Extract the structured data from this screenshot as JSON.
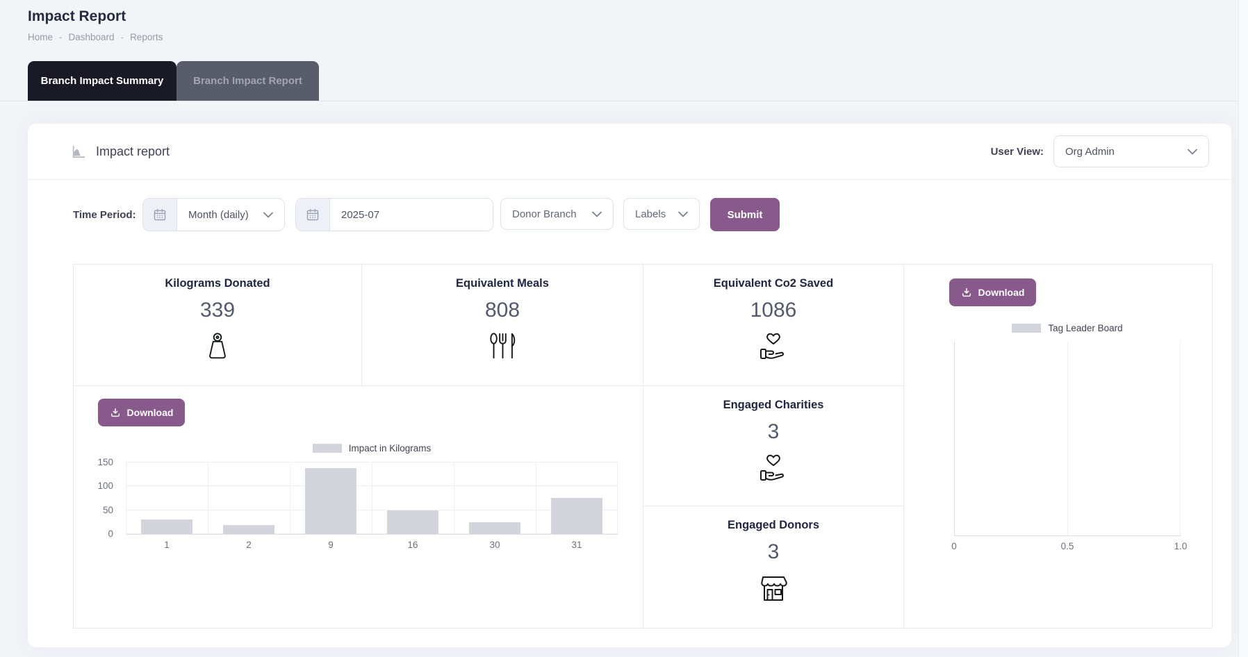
{
  "page": {
    "title": "Impact Report",
    "breadcrumb": {
      "items": [
        "Home",
        "Dashboard",
        "Reports"
      ],
      "separator": "-"
    }
  },
  "tabs": {
    "summary": "Branch Impact Summary",
    "report": "Branch Impact Report"
  },
  "panel": {
    "title": "Impact report",
    "user_view": {
      "label": "User View:",
      "value": "Org Admin"
    },
    "filters": {
      "time_period_label": "Time Period:",
      "granularity": "Month (daily)",
      "month": "2025-07",
      "donor_branch": "Donor Branch",
      "labels": "Labels",
      "submit": "Submit"
    },
    "download_label": "Download",
    "stats": {
      "kilograms": {
        "label": "Kilograms Donated",
        "value": "339",
        "icon": "weight-icon"
      },
      "meals": {
        "label": "Equivalent Meals",
        "value": "808",
        "icon": "cutlery-icon"
      },
      "co2": {
        "label": "Equivalent Co2 Saved",
        "value": "1086",
        "icon": "hand-heart-icon"
      },
      "charities": {
        "label": "Engaged Charities",
        "value": "3",
        "icon": "hand-heart-icon"
      },
      "donors": {
        "label": "Engaged Donors",
        "value": "3",
        "icon": "storefront-icon"
      }
    }
  },
  "chart_data": [
    {
      "type": "bar",
      "legend": "Impact in Kilograms",
      "categories": [
        "1",
        "2",
        "9",
        "16",
        "30",
        "31"
      ],
      "values": [
        30,
        19,
        139,
        50,
        25,
        76
      ],
      "xlabel": "",
      "ylabel": "",
      "ylim": [
        0,
        150
      ],
      "yticks": [
        0,
        50,
        100,
        150
      ],
      "grid": true,
      "legend_position": "top",
      "bar_color": "#d3d5dd"
    },
    {
      "type": "bar",
      "legend": "Tag Leader Board",
      "categories": [],
      "values": [],
      "xlim": [
        0,
        1
      ],
      "xticks": [
        0,
        0.5,
        1
      ],
      "xtick_labels": [
        "0",
        "0.5",
        "1.0"
      ],
      "grid": true,
      "legend_position": "top"
    }
  ],
  "colors": {
    "accent_purple": "#885a8c",
    "tab_active_bg": "#1a1a27",
    "tab_inactive_bg": "#595c6b",
    "bar_fill": "#d3d5dd",
    "page_bg": "#f2f5f8",
    "border": "#e8eaf2"
  }
}
